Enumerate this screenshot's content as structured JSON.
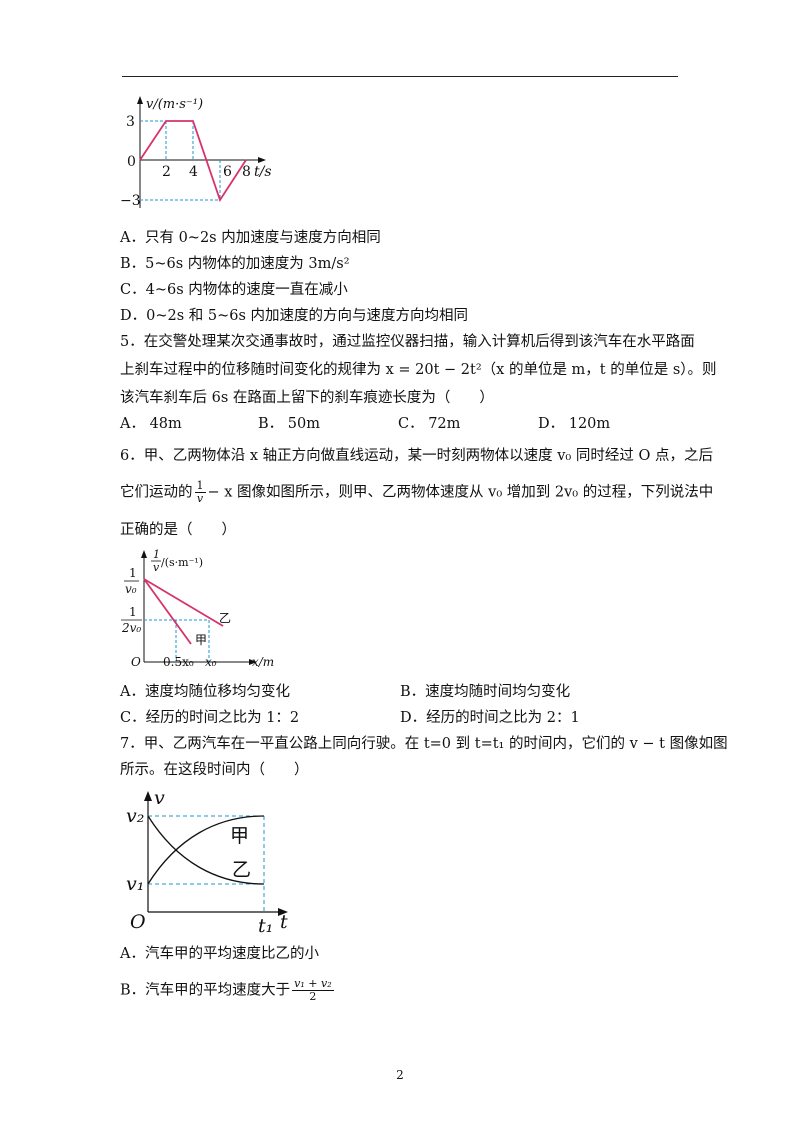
{
  "q4": {
    "graph": {
      "ylabel": "v/(m·s⁻¹)",
      "xlabel": "t/s",
      "y_pos": "3",
      "y_neg": "−3",
      "origin": "0",
      "xticks": [
        "2",
        "4",
        "6",
        "8"
      ]
    },
    "optA": "A．只有 0~2s 内加速度与速度方向相同",
    "optB": "B．5~6s 内物体的加速度为 3m/s²",
    "optC": "C．4~6s 内物体的速度一直在减小",
    "optD": "D．0~2s 和 5~6s 内加速度的方向与速度方向均相同"
  },
  "q5": {
    "line1": "5．在交警处理某次交通事故时，通过监控仪器扫描，输入计算机后得到该汽车在水平路面",
    "line2": "上刹车过程中的位移随时间变化的规律为 x = 20t − 2t²（x 的单位是 m，t 的单位是 s）。则",
    "line3": "该汽车刹车后 6s 在路面上留下的刹车痕迹长度为（　　）",
    "optA": "A． 48m",
    "optB": "B． 50m",
    "optC": "C． 72m",
    "optD": "D． 120m"
  },
  "q6": {
    "line1": "6．甲、乙两物体沿 x 轴正方向做直线运动，某一时刻两物体以速度 v₀ 同时经过 O 点，之后",
    "line2a": "它们运动的",
    "frac_num": "1",
    "frac_den": "v",
    "line2b": "− x 图像如图所示，则甲、乙两物体速度从 v₀ 增加到 2v₀ 的过程，下列说法中",
    "line3": "正确的是（　　）",
    "graph": {
      "ylabel_num": "1",
      "ylabel_den": "v",
      "ylabel_unit": "/(s·m⁻¹)",
      "y1_num": "1",
      "y1_den": "v₀",
      "y2_num": "1",
      "y2_den": "2v₀",
      "origin": "O",
      "x1": "0.5x₀",
      "x2": "x₀",
      "xlabel": "x/m",
      "label_yi": "乙",
      "label_jia": "甲"
    },
    "optA": "A．速度均随位移均匀变化",
    "optB": "B．速度均随时间均匀变化",
    "optC": "C．经历的时间之比为 1：2",
    "optD": "D．经历的时间之比为 2：1"
  },
  "q7": {
    "line1": "7．甲、乙两汽车在一平直公路上同向行驶。在 t=0 到 t=t₁ 的时间内，它们的 v − t 图像如图",
    "line2": "所示。在这段时间内（　　）",
    "graph": {
      "ylabel": "v",
      "xlabel": "t",
      "origin": "O",
      "v2": "v₂",
      "v1": "v₁",
      "t1": "t₁",
      "label_jia": "甲",
      "label_yi": "乙"
    },
    "optA": "A．汽车甲的平均速度比乙的小",
    "optB_text": "B．汽车甲的平均速度大于",
    "optB_num": "v₁ + v₂",
    "optB_den": "2"
  },
  "page_number": "2",
  "colors": {
    "curve": "#d6336c",
    "dash": "#1a9ad6",
    "text": "#111111"
  }
}
